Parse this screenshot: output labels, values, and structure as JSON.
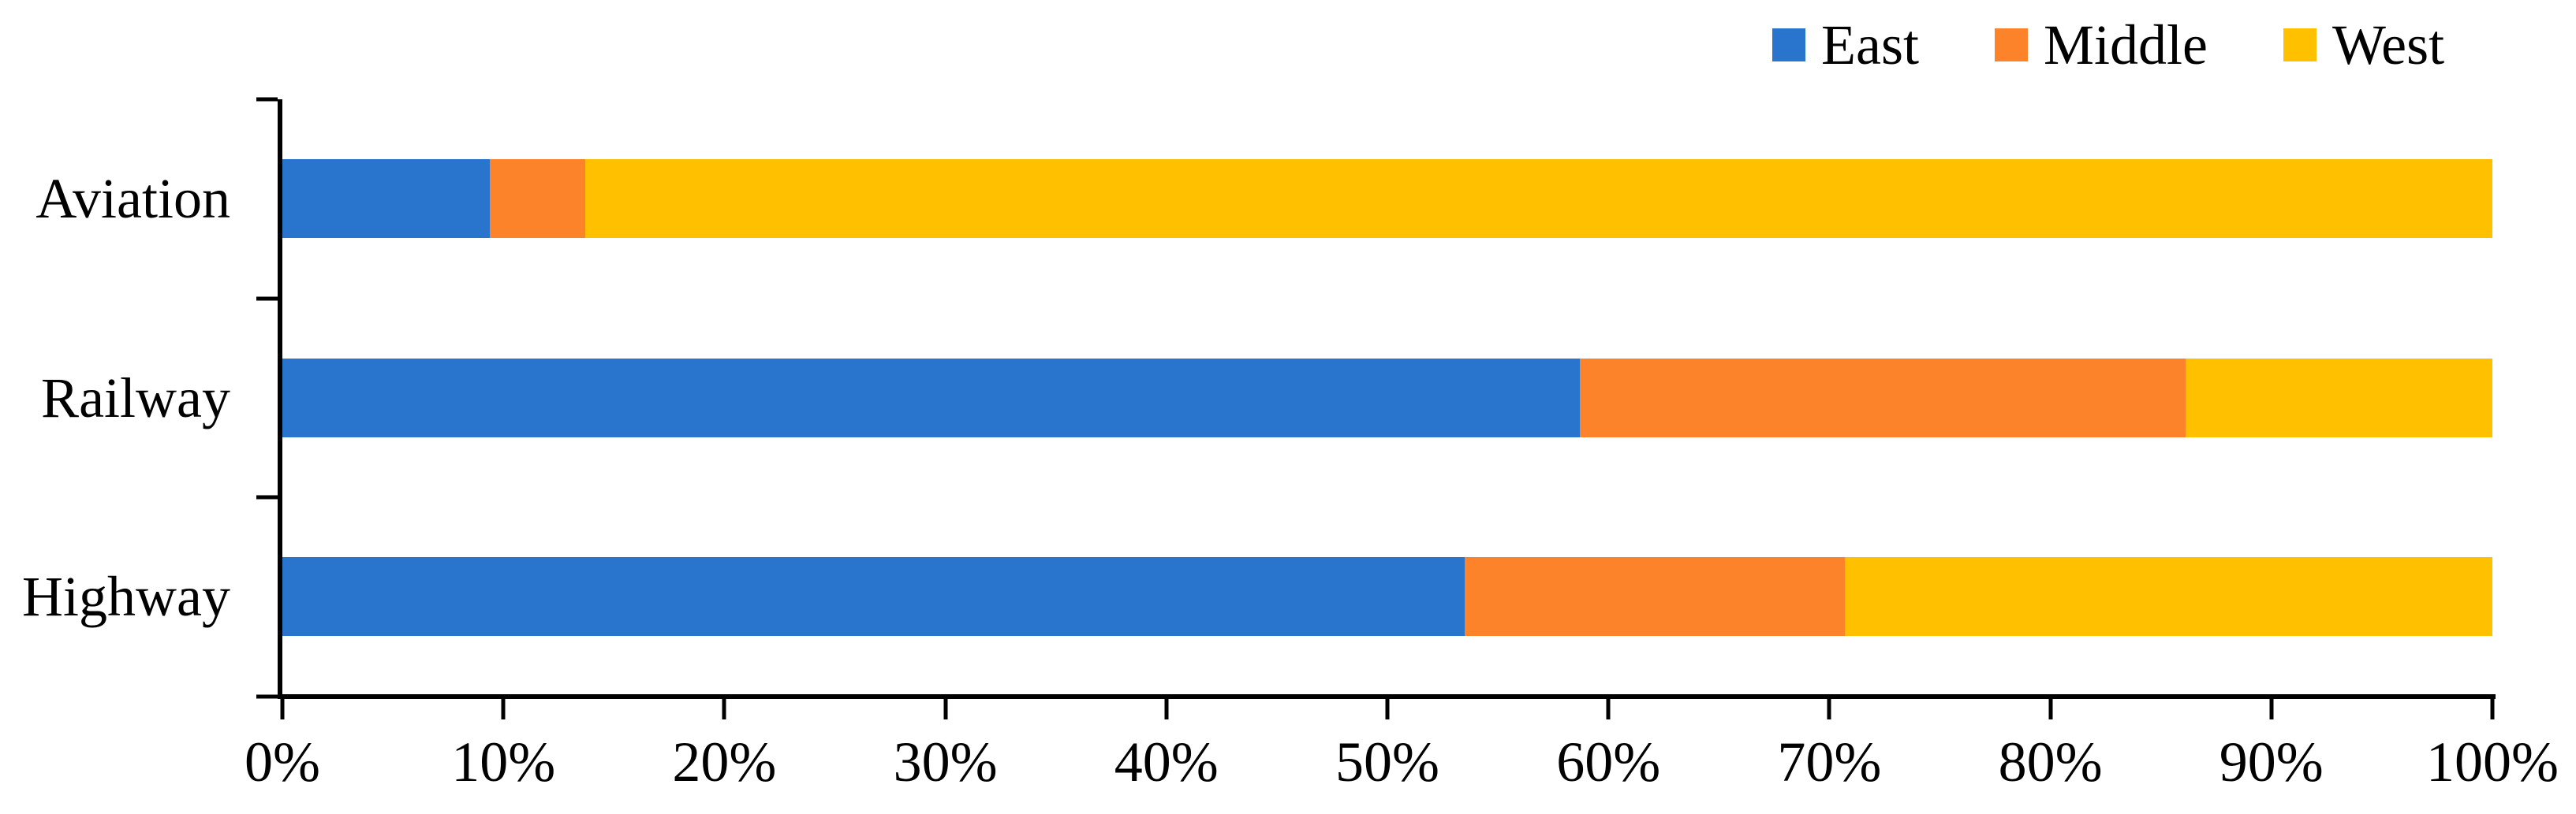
{
  "chart_data": {
    "type": "bar",
    "orientation": "horizontal",
    "stacked": true,
    "percent_stacked": true,
    "title": "",
    "categories": [
      "Aviation",
      "Railway",
      "Highway"
    ],
    "series": [
      {
        "name": "East",
        "color": "#2975CD",
        "values": [
          9.4,
          58.7,
          53.5
        ]
      },
      {
        "name": "Middle",
        "color": "#FC8329",
        "values": [
          4.3,
          27.4,
          17.2
        ]
      },
      {
        "name": "West",
        "color": "#FFC000",
        "values": [
          86.3,
          13.9,
          29.3
        ]
      }
    ],
    "x_axis": {
      "min": 0,
      "max": 100,
      "tick_step": 10,
      "tick_labels": [
        "0%",
        "10%",
        "20%",
        "30%",
        "40%",
        "50%",
        "60%",
        "70%",
        "80%",
        "90%",
        "100%"
      ],
      "unit": "%"
    },
    "legend": {
      "position": "top-right"
    },
    "grid": false,
    "axis_color": "#000000",
    "background": "#FFFFFF"
  }
}
